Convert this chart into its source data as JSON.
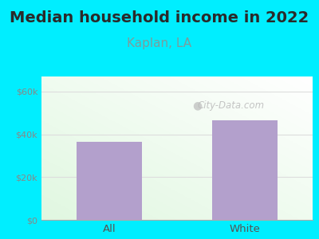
{
  "title": "Median household income in 2022",
  "subtitle": "Kaplan, LA",
  "categories": [
    "All",
    "White"
  ],
  "values": [
    36500,
    46500
  ],
  "bar_color": "#b3a0cc",
  "title_fontsize": 14,
  "subtitle_fontsize": 11,
  "subtitle_color": "#7a9e9e",
  "title_color": "#2a2a2a",
  "outer_bg": "#00eeff",
  "yticks": [
    0,
    20000,
    40000,
    60000
  ],
  "ytick_labels": [
    "$0",
    "$20k",
    "$40k",
    "$60k"
  ],
  "ylim": [
    0,
    67000
  ],
  "tick_color": "#888888",
  "watermark": "City-Data.com",
  "watermark_color": "#bbbbbb",
  "grid_color": "#dddddd"
}
